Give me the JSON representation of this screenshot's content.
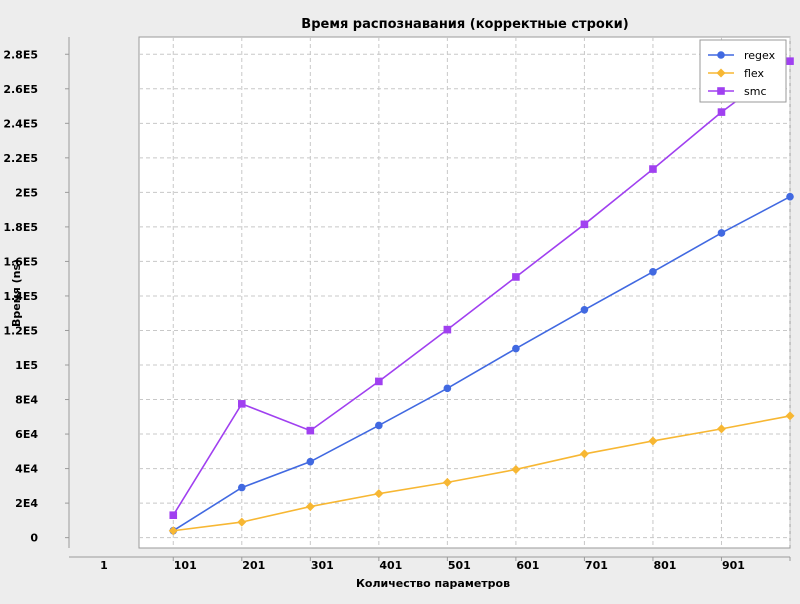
{
  "chart_data": {
    "type": "line",
    "title": "Время распознавания (корректные строки)",
    "xlabel": "Количество параметров",
    "ylabel": "Время (ns)",
    "x_tick_labels": [
      "1",
      "101",
      "201",
      "301",
      "401",
      "501",
      "601",
      "701",
      "801",
      "901"
    ],
    "y_tick_labels": [
      "0",
      "2E4",
      "4E4",
      "6E4",
      "8E4",
      "1E5",
      "1.2E5",
      "1.4E5",
      "1.6E5",
      "1.8E5",
      "2E5",
      "2.2E5",
      "2.4E5",
      "2.6E5",
      "2.8E5"
    ],
    "y_tick_values": [
      0,
      20000,
      40000,
      60000,
      80000,
      100000,
      120000,
      140000,
      160000,
      180000,
      200000,
      220000,
      240000,
      260000,
      280000
    ],
    "x": [
      101,
      201,
      301,
      401,
      501,
      601,
      701,
      801,
      901,
      1001
    ],
    "xlim": [
      51,
      1001
    ],
    "ylim": [
      -6000,
      290000
    ],
    "grid": true,
    "legend_position": "top-right",
    "series": [
      {
        "name": "regex",
        "color": "#4169e1",
        "marker": "circle",
        "values": [
          4000,
          29000,
          44000,
          65000,
          86500,
          109500,
          132000,
          154000,
          176500,
          197500
        ]
      },
      {
        "name": "flex",
        "color": "#f7b733",
        "marker": "diamond",
        "values": [
          4000,
          9000,
          18000,
          25500,
          32000,
          39500,
          48500,
          56000,
          63000,
          70500
        ]
      },
      {
        "name": "smc",
        "color": "#a040f0",
        "marker": "square",
        "values": [
          13000,
          77500,
          62000,
          90500,
          120500,
          151000,
          181500,
          213500,
          246500,
          276000
        ]
      }
    ]
  }
}
